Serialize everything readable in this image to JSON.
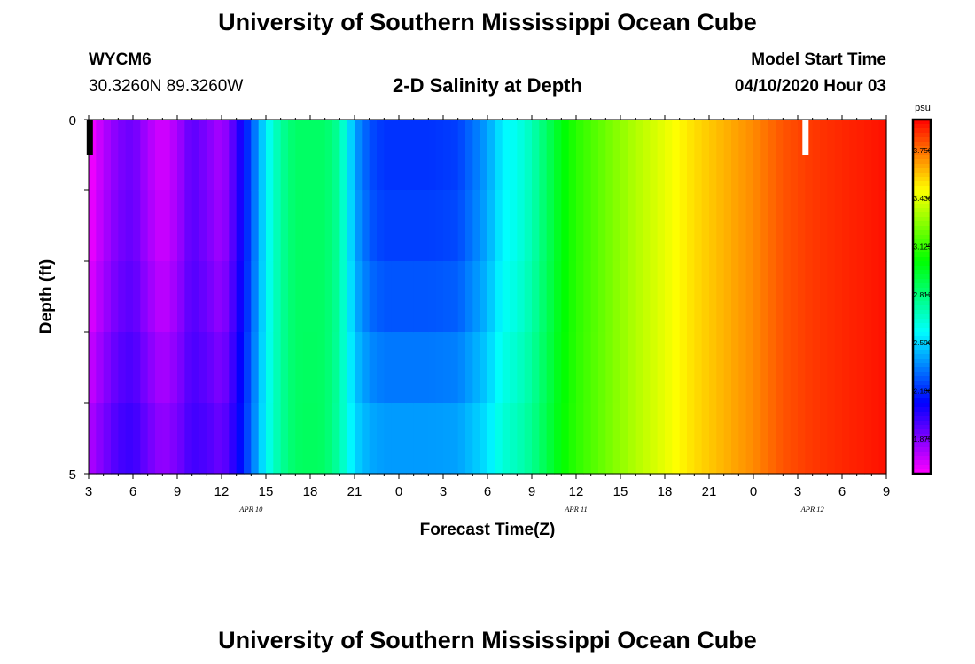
{
  "header": {
    "top_title": "University of Southern Mississippi Ocean Cube",
    "bottom_title": "University of Southern Mississippi Ocean Cube",
    "station": "WYCM6",
    "coords": "30.3260N 89.3260W",
    "plot_title": "2-D Salinity at Depth",
    "model_start_label": "Model Start Time",
    "model_start_value": "04/10/2020 Hour 03"
  },
  "chart_data": {
    "type": "heatmap",
    "title": "2-D Salinity at Depth",
    "xlabel": "Forecast Time(Z)",
    "ylabel": "Depth (ft)",
    "units": "psu",
    "ylim": [
      0,
      5
    ],
    "y_tick_labels": [
      "0",
      "5"
    ],
    "x_tick_labels": [
      "3",
      "6",
      "9",
      "12",
      "15",
      "18",
      "21",
      "0",
      "3",
      "6",
      "9",
      "12",
      "15",
      "18",
      "21",
      "0",
      "3",
      "6",
      "9"
    ],
    "date_labels": [
      {
        "text": "APR 10",
        "at_hour": 14
      },
      {
        "text": "APR 11",
        "at_hour": 36
      },
      {
        "text": "APR 12",
        "at_hour": 52
      }
    ],
    "forecast_hours": [
      3,
      57
    ],
    "colorbar": {
      "range": [
        1.65,
        3.95
      ],
      "tick_labels": [
        "3.750",
        "3.438",
        "3.125",
        "2.812",
        "2.500",
        "2.188",
        "1.875"
      ],
      "tick_values": [
        3.75,
        3.438,
        3.125,
        2.812,
        2.5,
        2.188,
        1.875
      ]
    },
    "profiles": {
      "depth_rows": 5,
      "key_hours": [
        3,
        4,
        5,
        6,
        7,
        8,
        9,
        10,
        11,
        12,
        13,
        14,
        15,
        16,
        17,
        18,
        19,
        20,
        21,
        22,
        23,
        24,
        26,
        28,
        30,
        31,
        32,
        33,
        34,
        35,
        36,
        40,
        44,
        48,
        50,
        52,
        54,
        57
      ],
      "surface": [
        1.65,
        1.78,
        1.88,
        1.92,
        1.8,
        1.72,
        1.8,
        1.95,
        1.88,
        1.8,
        2.0,
        2.25,
        2.55,
        2.75,
        2.85,
        2.85,
        2.85,
        2.75,
        2.4,
        2.25,
        2.2,
        2.2,
        2.2,
        2.22,
        2.4,
        2.55,
        2.6,
        2.7,
        2.85,
        3.0,
        3.1,
        3.35,
        3.55,
        3.7,
        3.8,
        3.85,
        3.88,
        3.92
      ],
      "bottom": [
        1.95,
        2.02,
        2.1,
        2.12,
        2.05,
        1.98,
        2.0,
        2.05,
        2.08,
        2.05,
        2.15,
        2.35,
        2.6,
        2.75,
        2.85,
        2.88,
        2.85,
        2.7,
        2.62,
        2.62,
        2.62,
        2.62,
        2.62,
        2.62,
        2.66,
        2.75,
        2.8,
        2.85,
        2.95,
        3.05,
        3.12,
        3.35,
        3.55,
        3.7,
        3.8,
        3.85,
        3.88,
        3.92
      ],
      "middle_profile": [
        0.0,
        0.05,
        0.15,
        0.3,
        0.45,
        0.6,
        0.8,
        1.0
      ]
    },
    "missing_marks": [
      {
        "at_hour": 3.05,
        "depth_row": 0,
        "color": "#000000"
      },
      {
        "at_hour": 51.5,
        "depth_row": 0,
        "color": "#ffffff"
      }
    ]
  }
}
